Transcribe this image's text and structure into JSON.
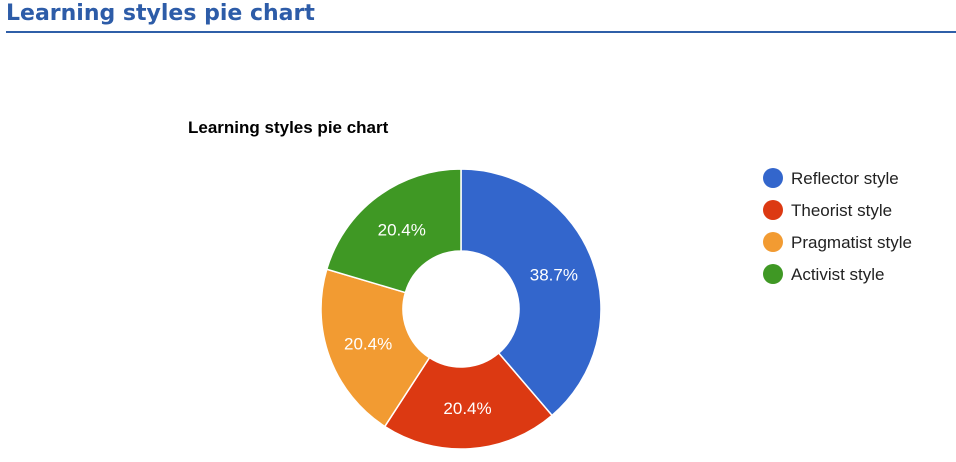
{
  "page": {
    "title": "Learning styles pie chart"
  },
  "chart_data": {
    "type": "pie",
    "donut": true,
    "title": "Learning styles pie chart",
    "categories": [
      "Reflector style",
      "Theorist style",
      "Pragmatist style",
      "Activist style"
    ],
    "values": [
      38.7,
      20.4,
      20.4,
      20.4
    ],
    "labels": [
      "38.7%",
      "20.4%",
      "20.4%",
      "20.4%"
    ],
    "colors": [
      "#3366cc",
      "#dc3912",
      "#f29b32",
      "#3f9824"
    ],
    "legend_position": "right"
  }
}
